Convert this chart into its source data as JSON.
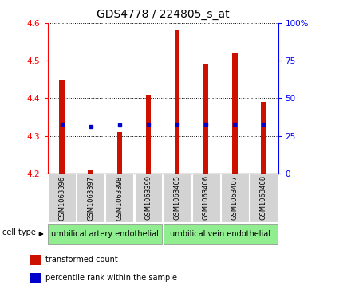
{
  "title": "GDS4778 / 224805_s_at",
  "samples": [
    "GSM1063396",
    "GSM1063397",
    "GSM1063398",
    "GSM1063399",
    "GSM1063405",
    "GSM1063406",
    "GSM1063407",
    "GSM1063408"
  ],
  "transformed_count": [
    4.45,
    4.21,
    4.31,
    4.41,
    4.58,
    4.49,
    4.52,
    4.39
  ],
  "percentile_rank": [
    33,
    31,
    32,
    33,
    33,
    33,
    33,
    33
  ],
  "ylim_left": [
    4.2,
    4.6
  ],
  "ylim_right": [
    0,
    100
  ],
  "yticks_left": [
    4.2,
    4.3,
    4.4,
    4.5,
    4.6
  ],
  "yticks_right": [
    0,
    25,
    50,
    75,
    100
  ],
  "bar_color": "#cc1100",
  "dot_color": "#0000cc",
  "bar_bottom": 4.2,
  "group1_label": "umbilical artery endothelial",
  "group2_label": "umbilical vein endothelial",
  "group1_indices": [
    0,
    1,
    2,
    3
  ],
  "group2_indices": [
    4,
    5,
    6,
    7
  ],
  "cell_type_label": "cell type",
  "legend_bar_label": "transformed count",
  "legend_dot_label": "percentile rank within the sample",
  "group_bg_color": "#90ee90",
  "xlabel_bg_color": "#d3d3d3",
  "title_fontsize": 10,
  "tick_fontsize": 7.5
}
